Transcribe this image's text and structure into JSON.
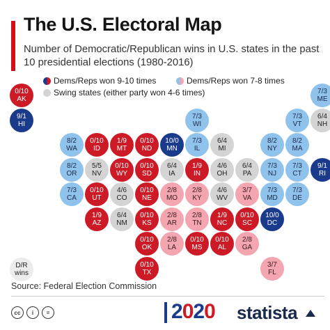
{
  "title": "The U.S. Electoral Map",
  "subtitle": "Number of Democratic/Republican wins in U.S. states in the past 10 presidential elections (1980-2016)",
  "legend": [
    {
      "key": "dr",
      "label": "Dems/Reps won 9-10 times"
    },
    {
      "key": "lt",
      "label": "Dems/Reps won 7-8 times"
    },
    {
      "key": "sw",
      "label": "Swing states (either party won 4-6 times)"
    }
  ],
  "colors": {
    "dem_strong": "#1a3a8c",
    "dem_lean": "#8fc3ec",
    "swing": "#d4d4d4",
    "rep_lean": "#f3a6af",
    "rep_strong": "#cc1b27",
    "accent": "#d0101d"
  },
  "chart_data": {
    "type": "table",
    "value_format": "D/R wins",
    "states": [
      {
        "state": "AK",
        "wins": "0/10",
        "category": "rep_strong"
      },
      {
        "state": "HI",
        "wins": "9/1",
        "category": "dem_strong"
      },
      {
        "state": "ME",
        "wins": "7/3",
        "category": "dem_lean"
      },
      {
        "state": "WI",
        "wins": "7/3",
        "category": "dem_lean"
      },
      {
        "state": "VT",
        "wins": "7/3",
        "category": "dem_lean"
      },
      {
        "state": "NH",
        "wins": "6/4",
        "category": "swing"
      },
      {
        "state": "WA",
        "wins": "8/2",
        "category": "dem_lean"
      },
      {
        "state": "ID",
        "wins": "0/10",
        "category": "rep_strong"
      },
      {
        "state": "MT",
        "wins": "1/9",
        "category": "rep_strong"
      },
      {
        "state": "ND",
        "wins": "0/10",
        "category": "rep_strong"
      },
      {
        "state": "MN",
        "wins": "10/0",
        "category": "dem_strong"
      },
      {
        "state": "IL",
        "wins": "7/3",
        "category": "dem_lean"
      },
      {
        "state": "MI",
        "wins": "6/4",
        "category": "swing"
      },
      {
        "state": "NY",
        "wins": "8/2",
        "category": "dem_lean"
      },
      {
        "state": "MA",
        "wins": "8/2",
        "category": "dem_lean"
      },
      {
        "state": "OR",
        "wins": "8/2",
        "category": "dem_lean"
      },
      {
        "state": "NV",
        "wins": "5/5",
        "category": "swing"
      },
      {
        "state": "WY",
        "wins": "0/10",
        "category": "rep_strong"
      },
      {
        "state": "SD",
        "wins": "0/10",
        "category": "rep_strong"
      },
      {
        "state": "IA",
        "wins": "6/4",
        "category": "swing"
      },
      {
        "state": "IN",
        "wins": "1/9",
        "category": "rep_strong"
      },
      {
        "state": "OH",
        "wins": "4/6",
        "category": "swing"
      },
      {
        "state": "PA",
        "wins": "6/4",
        "category": "swing"
      },
      {
        "state": "NJ",
        "wins": "7/3",
        "category": "dem_lean"
      },
      {
        "state": "CT",
        "wins": "7/3",
        "category": "dem_lean"
      },
      {
        "state": "RI",
        "wins": "9/1",
        "category": "dem_strong"
      },
      {
        "state": "CA",
        "wins": "7/3",
        "category": "dem_lean"
      },
      {
        "state": "UT",
        "wins": "0/10",
        "category": "rep_strong"
      },
      {
        "state": "CO",
        "wins": "4/6",
        "category": "swing"
      },
      {
        "state": "NE",
        "wins": "0/10",
        "category": "rep_strong"
      },
      {
        "state": "MO",
        "wins": "2/8",
        "category": "rep_lean"
      },
      {
        "state": "KY",
        "wins": "2/8",
        "category": "rep_lean"
      },
      {
        "state": "WV",
        "wins": "4/6",
        "category": "swing"
      },
      {
        "state": "VA",
        "wins": "3/7",
        "category": "rep_lean"
      },
      {
        "state": "MD",
        "wins": "7/3",
        "category": "dem_lean"
      },
      {
        "state": "DE",
        "wins": "7/3",
        "category": "dem_lean"
      },
      {
        "state": "AZ",
        "wins": "1/9",
        "category": "rep_strong"
      },
      {
        "state": "NM",
        "wins": "6/4",
        "category": "swing"
      },
      {
        "state": "KS",
        "wins": "0/10",
        "category": "rep_strong"
      },
      {
        "state": "AR",
        "wins": "2/8",
        "category": "rep_lean"
      },
      {
        "state": "TN",
        "wins": "2/8",
        "category": "rep_lean"
      },
      {
        "state": "NC",
        "wins": "1/9",
        "category": "rep_strong"
      },
      {
        "state": "SC",
        "wins": "0/10",
        "category": "rep_strong"
      },
      {
        "state": "DC",
        "wins": "10/0",
        "category": "dem_strong"
      },
      {
        "state": "OK",
        "wins": "0/10",
        "category": "rep_strong"
      },
      {
        "state": "LA",
        "wins": "2/8",
        "category": "rep_lean"
      },
      {
        "state": "MS",
        "wins": "0/10",
        "category": "rep_strong"
      },
      {
        "state": "AL",
        "wins": "0/10",
        "category": "rep_strong"
      },
      {
        "state": "GA",
        "wins": "2/8",
        "category": "rep_lean"
      },
      {
        "state": "TX",
        "wins": "0/10",
        "category": "rep_strong"
      },
      {
        "state": "FL",
        "wins": "3/7",
        "category": "rep_lean"
      }
    ]
  },
  "key": {
    "line1": "D/R",
    "line2": "wins"
  },
  "source": "Source: Federal Election Commission",
  "footer": {
    "cc_icons": [
      "cc",
      "i",
      "="
    ],
    "year_a": "2",
    "year_b": "0",
    "year_c": "2",
    "year_d": "0",
    "brand": "statista"
  }
}
